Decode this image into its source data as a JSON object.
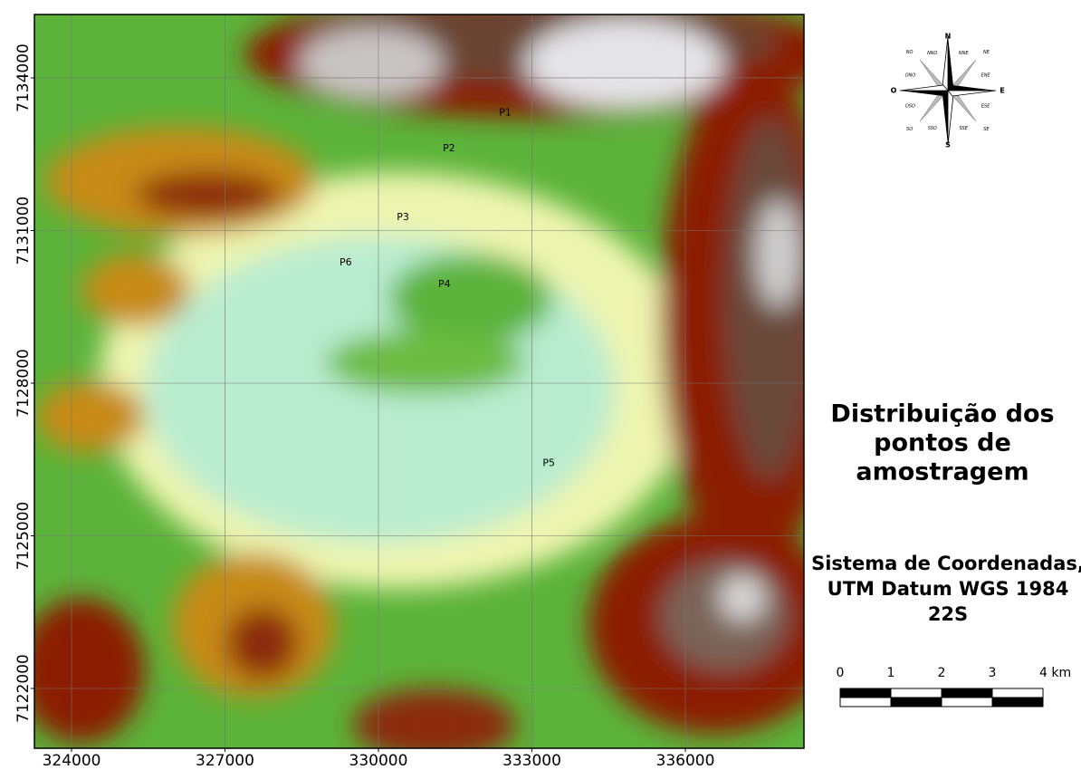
{
  "map": {
    "title_lines": [
      "Distribuição dos",
      "pontos de",
      "amostragem"
    ],
    "crs_lines": [
      "Sistema de Coordenadas,",
      "UTM Datum WGS 1984",
      "22S"
    ],
    "xlim": [
      323274,
      338319
    ],
    "ylim": [
      7120825,
      7135246
    ],
    "xticks": [
      324000,
      327000,
      330000,
      333000,
      336000
    ],
    "yticks": [
      7122000,
      7125000,
      7128000,
      7131000,
      7134000
    ],
    "grid": true,
    "points": [
      {
        "label": "P1",
        "x": 332480,
        "y": 7133310
      },
      {
        "label": "P2",
        "x": 331380,
        "y": 7132610
      },
      {
        "label": "P3",
        "x": 330480,
        "y": 7131260
      },
      {
        "label": "P6",
        "x": 329360,
        "y": 7130370
      },
      {
        "label": "P4",
        "x": 331290,
        "y": 7129940
      },
      {
        "label": "P5",
        "x": 333330,
        "y": 7126420
      }
    ],
    "compass": {
      "main": [
        "N",
        "E",
        "S",
        "O"
      ],
      "minor": [
        "NNE",
        "NE",
        "ENE",
        "ESE",
        "SE",
        "SSE",
        "SSO",
        "SO",
        "OSO",
        "ONO",
        "NO",
        "NNO"
      ]
    },
    "scale_bar": {
      "ticks": [
        0,
        1,
        2,
        3,
        {
          "value": 4,
          "label": "4 km"
        }
      ]
    }
  }
}
